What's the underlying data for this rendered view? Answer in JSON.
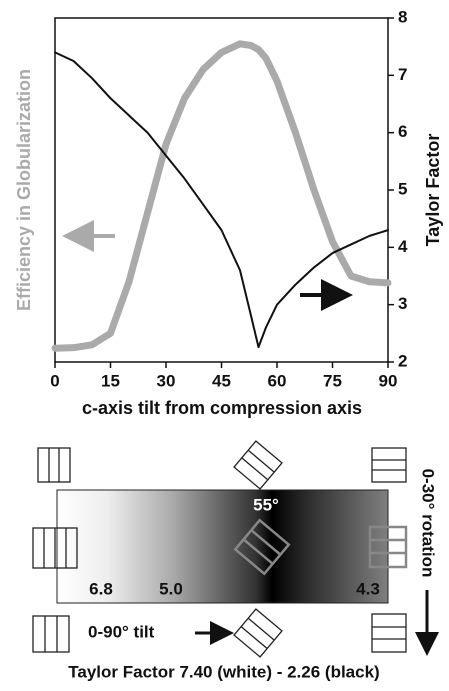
{
  "chart_data": {
    "type": "line",
    "x_label": "c-axis tilt from compression axis",
    "y_label": "Efficiency in Globularization",
    "y2_label": "Taylor Factor",
    "x": [
      0,
      5,
      10,
      15,
      20,
      25,
      30,
      35,
      40,
      45,
      50,
      53,
      55,
      57,
      60,
      65,
      70,
      75,
      80,
      85,
      90
    ],
    "xlim": [
      0,
      90
    ],
    "xticks": [
      0,
      15,
      30,
      45,
      60,
      75,
      90
    ],
    "y2lim": [
      2,
      8
    ],
    "y2ticks": [
      2,
      3,
      4,
      5,
      6,
      7,
      8
    ],
    "series": [
      {
        "color": "#aaaaaa",
        "axis": "y2",
        "values": [
          2.24,
          2.25,
          2.3,
          2.5,
          3.4,
          4.6,
          5.8,
          6.6,
          7.1,
          7.4,
          7.55,
          7.52,
          7.45,
          7.3,
          6.9,
          6.0,
          5.0,
          4.1,
          3.5,
          3.4,
          3.38
        ]
      },
      {
        "color": "#111111",
        "axis": "y2",
        "values": [
          7.4,
          7.25,
          6.95,
          6.6,
          6.3,
          6.0,
          5.6,
          5.2,
          4.75,
          4.3,
          3.6,
          2.8,
          2.26,
          2.6,
          3.0,
          3.35,
          3.65,
          3.9,
          4.05,
          4.2,
          4.3
        ]
      }
    ]
  },
  "diagram": {
    "angle_label": "55°",
    "values": [
      "6.8",
      "5.0",
      "4.3"
    ],
    "tilt_label": "0-90° tilt",
    "rotation_label": "0-30° rotation",
    "caption": "Taylor Factor 7.40 (white) - 2.26 (black)"
  }
}
